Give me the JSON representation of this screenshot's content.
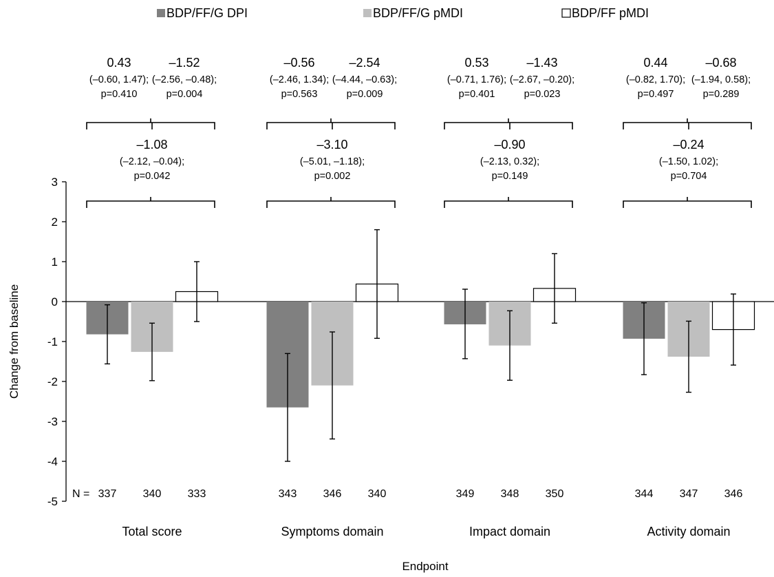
{
  "chart_data": {
    "type": "bar",
    "title": "",
    "xlabel": "Endpoint",
    "ylabel": "Change from baseline",
    "ylim": [
      -5,
      3
    ],
    "yticks": [
      3,
      2,
      1,
      0,
      -1,
      -2,
      -3,
      -4,
      -5
    ],
    "grid": false,
    "legend_position": "top",
    "categories": [
      "Total score",
      "Symptoms domain",
      "Impact domain",
      "Activity domain"
    ],
    "series": [
      {
        "name": "BDP/FF/G DPI",
        "color": "#808080",
        "fill": "#808080",
        "values": [
          -0.82,
          -2.65,
          -0.57,
          -0.93
        ],
        "err_low": [
          -1.56,
          -4.0,
          -1.43,
          -1.83
        ],
        "err_high": [
          -0.08,
          -1.3,
          0.31,
          -0.03
        ],
        "n": [
          "337",
          "343",
          "349",
          "344"
        ]
      },
      {
        "name": "BDP/FF/G pMDI",
        "color": "#bfbfbf",
        "fill": "#bfbfbf",
        "values": [
          -1.26,
          -2.1,
          -1.1,
          -1.38
        ],
        "err_low": [
          -1.98,
          -3.44,
          -1.97,
          -2.27
        ],
        "err_high": [
          -0.54,
          -0.76,
          -0.23,
          -0.49
        ],
        "n": [
          "340",
          "346",
          "348",
          "347"
        ]
      },
      {
        "name": "BDP/FF pMDI",
        "color": "#000000",
        "fill": "#ffffff",
        "values": [
          0.25,
          0.44,
          0.33,
          -0.7
        ],
        "err_low": [
          -0.5,
          -0.92,
          -0.54,
          -1.59
        ],
        "err_high": [
          1.0,
          1.8,
          1.2,
          0.19
        ],
        "n": [
          "333",
          "340",
          "350",
          "346"
        ]
      }
    ],
    "n_prefix": "N =",
    "comparisons": [
      {
        "pair_left": {
          "diff": "0.43",
          "ci": "(–0.60, 1.47);",
          "p": "p=0.410"
        },
        "pair_right": {
          "diff": "–1.52",
          "ci": "(–2.56, –0.48);",
          "p": "p=0.004"
        },
        "overall": {
          "diff": "–1.08",
          "ci": "(–2.12, –0.04);",
          "p": "p=0.042"
        }
      },
      {
        "pair_left": {
          "diff": "–0.56",
          "ci": "(–2.46, 1.34);",
          "p": "p=0.563"
        },
        "pair_right": {
          "diff": "–2.54",
          "ci": "(–4.44, –0.63);",
          "p": "p=0.009"
        },
        "overall": {
          "diff": "–3.10",
          "ci": "(–5.01, –1.18);",
          "p": "p=0.002"
        }
      },
      {
        "pair_left": {
          "diff": "0.53",
          "ci": "(–0.71, 1.76);",
          "p": "p=0.401"
        },
        "pair_right": {
          "diff": "–1.43",
          "ci": "(–2.67, –0.20);",
          "p": "p=0.023"
        },
        "overall": {
          "diff": "–0.90",
          "ci": "(–2.13, 0.32);",
          "p": "p=0.149"
        }
      },
      {
        "pair_left": {
          "diff": "0.44",
          "ci": "(–0.82, 1.70);",
          "p": "p=0.497"
        },
        "pair_right": {
          "diff": "–0.68",
          "ci": "(–1.94, 0.58);",
          "p": "p=0.289"
        },
        "overall": {
          "diff": "–0.24",
          "ci": "(–1.50, 1.02);",
          "p": "p=0.704"
        }
      }
    ]
  }
}
